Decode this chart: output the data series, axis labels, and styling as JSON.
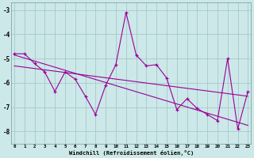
{
  "x": [
    0,
    1,
    2,
    3,
    4,
    5,
    6,
    7,
    8,
    9,
    10,
    11,
    12,
    13,
    14,
    15,
    16,
    17,
    18,
    19,
    20,
    21,
    22,
    23
  ],
  "line1": [
    -4.8,
    -4.8,
    -5.2,
    -5.55,
    -6.35,
    -5.55,
    -5.85,
    -6.55,
    -7.3,
    -6.1,
    -5.25,
    -3.1,
    -4.85,
    -5.3,
    -5.25,
    -5.8,
    -7.1,
    -6.65,
    -7.05,
    -7.3,
    -7.55,
    -5.0,
    -7.9,
    -6.35
  ],
  "trend1_x": [
    0,
    23
  ],
  "trend1_y": [
    -4.85,
    -7.75
  ],
  "trend2_x": [
    0,
    23
  ],
  "trend2_y": [
    -5.3,
    -6.55
  ],
  "bg_color": "#cce8e8",
  "grid_color": "#a8c8cc",
  "line_color": "#990099",
  "xlabel": "Windchill (Refroidissement éolien,°C)",
  "yticks": [
    -8,
    -7,
    -6,
    -5,
    -4,
    -3
  ],
  "xticks": [
    0,
    1,
    2,
    3,
    4,
    5,
    6,
    7,
    8,
    9,
    10,
    11,
    12,
    13,
    14,
    15,
    16,
    17,
    18,
    19,
    20,
    21,
    22,
    23
  ],
  "ylim": [
    -8.5,
    -2.7
  ],
  "xlim": [
    -0.3,
    23.3
  ]
}
